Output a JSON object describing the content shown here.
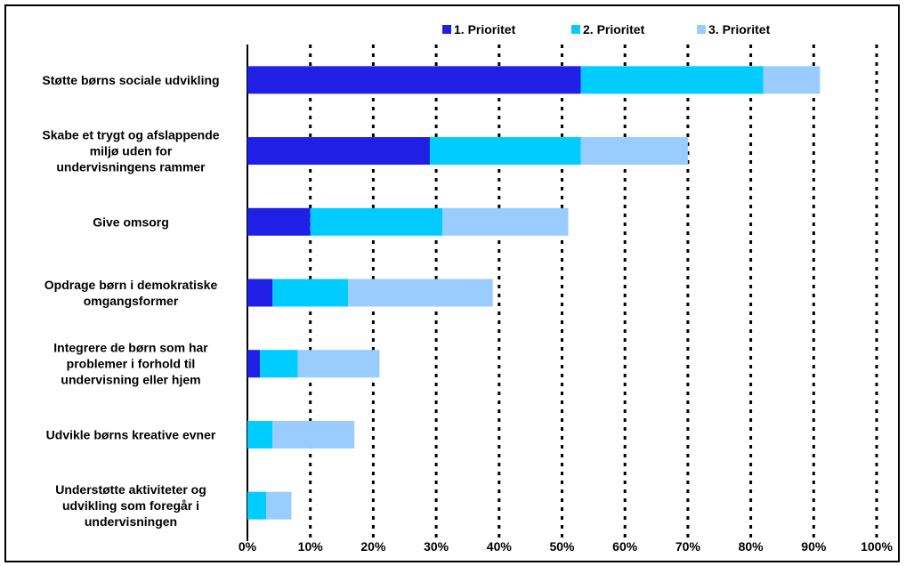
{
  "chart_data": {
    "type": "bar",
    "orientation": "horizontal",
    "stacked": true,
    "categories": [
      "Støtte børns sociale udvikling",
      "Skabe et trygt og afslappende miljø uden for undervisningens rammer",
      "Give omsorg",
      "Opdrage børn i demokratiske omgangsformer",
      "Integrere de børn som har problemer i forhold til undervisning eller hjem",
      "Udvikle børns kreative evner",
      "Understøtte aktiviteter og udvikling som foregår i undervisningen"
    ],
    "category_lines": [
      [
        "Støtte børns sociale udvikling"
      ],
      [
        "Skabe et trygt og afslappende",
        "miljø uden for",
        "undervisningens rammer"
      ],
      [
        "Give omsorg"
      ],
      [
        "Opdrage børn i demokratiske",
        "omgangsformer"
      ],
      [
        "Integrere de børn som har",
        "problemer i forhold til",
        "undervisning eller hjem"
      ],
      [
        "Udvikle børns kreative evner"
      ],
      [
        "Understøtte aktiviteter og",
        "udvikling som foregår i",
        "undervisningen"
      ]
    ],
    "series": [
      {
        "name": "1. Prioritet",
        "color": "#1f1fe6",
        "values": [
          53,
          29,
          10,
          4,
          2,
          0,
          0
        ]
      },
      {
        "name": "2. Prioritet",
        "color": "#00ccff",
        "values": [
          29,
          24,
          21,
          12,
          6,
          4,
          3
        ]
      },
      {
        "name": "3. Prioritet",
        "color": "#99ccff",
        "values": [
          9,
          17,
          20,
          23,
          13,
          13,
          4
        ]
      }
    ],
    "xlim": [
      0,
      100
    ],
    "xticks": [
      "0%",
      "10%",
      "20%",
      "30%",
      "40%",
      "50%",
      "60%",
      "70%",
      "80%",
      "90%",
      "100%"
    ],
    "grid": "vertical-dotted",
    "legend_position": "top-right"
  }
}
